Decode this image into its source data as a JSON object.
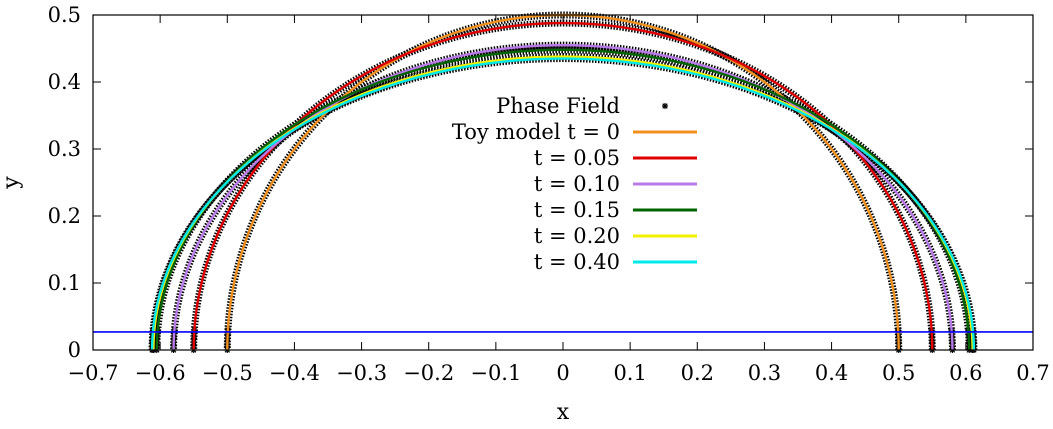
{
  "chart_data": {
    "type": "line",
    "xlabel": "x",
    "ylabel": "y",
    "xlim": [
      -0.7,
      0.7
    ],
    "ylim": [
      0,
      0.5
    ],
    "x_ticks": [
      "-0.7",
      "-0.6",
      "-0.5",
      "-0.4",
      "-0.3",
      "-0.2",
      "-0.1",
      "0",
      "0.1",
      "0.2",
      "0.3",
      "0.4",
      "0.5",
      "0.6",
      "0.7"
    ],
    "x_tick_values": [
      -0.7,
      -0.6,
      -0.5,
      -0.4,
      -0.3,
      -0.2,
      -0.1,
      0,
      0.1,
      0.2,
      0.3,
      0.4,
      0.5,
      0.6,
      0.7
    ],
    "y_ticks": [
      "0",
      "0.1",
      "0.2",
      "0.3",
      "0.4",
      "0.5"
    ],
    "y_tick_values": [
      0,
      0.1,
      0.2,
      0.3,
      0.4,
      0.5
    ],
    "grid": false,
    "legend_position": "center",
    "phase_field": {
      "name": "Phase Field",
      "marker": "star",
      "color": "#000000",
      "semi_axes": [
        [
          0.5,
          0.5
        ],
        [
          0.55,
          0.488
        ],
        [
          0.58,
          0.455
        ],
        [
          0.605,
          0.448
        ],
        [
          0.61,
          0.438
        ],
        [
          0.612,
          0.435
        ]
      ]
    },
    "series": [
      {
        "name": "Toy model t = 0",
        "color": "#f0901e",
        "a": 0.5,
        "b": 0.5
      },
      {
        "name": "t = 0.05",
        "color": "#e00000",
        "a": 0.55,
        "b": 0.488
      },
      {
        "name": "t = 0.10",
        "color": "#b87ae8",
        "a": 0.58,
        "b": 0.455
      },
      {
        "name": "t = 0.15",
        "color": "#006400",
        "a": 0.605,
        "b": 0.448
      },
      {
        "name": "t = 0.20",
        "color": "#f0f000",
        "a": 0.61,
        "b": 0.438
      },
      {
        "name": "t = 0.40",
        "color": "#00e8e8",
        "a": 0.612,
        "b": 0.435
      }
    ],
    "reference_line": {
      "y": 0.027,
      "color": "#0000ff"
    }
  }
}
